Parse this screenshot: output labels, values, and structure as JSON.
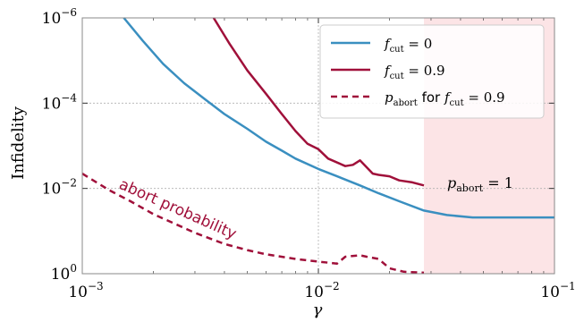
{
  "chart_data": {
    "type": "line",
    "xscale": "log",
    "yscale": "log",
    "xlim": [
      0.001,
      0.1
    ],
    "ylim": [
      1,
      1e-06
    ],
    "y_inverted": true,
    "xlabel": "γ",
    "ylabel": "Infidelity",
    "grid": true,
    "legend_position": "top-right",
    "x_ticks": [
      {
        "value": 0.001,
        "base": "10",
        "exp": "−3"
      },
      {
        "value": 0.01,
        "base": "10",
        "exp": "−2"
      },
      {
        "value": 0.1,
        "base": "10",
        "exp": "−1"
      }
    ],
    "y_ticks": [
      {
        "value": 1e-06,
        "base": "10",
        "exp": "−6"
      },
      {
        "value": 0.0001,
        "base": "10",
        "exp": "−4"
      },
      {
        "value": 0.01,
        "base": "10",
        "exp": "−2"
      },
      {
        "value": 1,
        "base": "10",
        "exp": "0"
      }
    ],
    "series": [
      {
        "name": "f_cut = 0",
        "legend_main": "f",
        "legend_sub": "cut",
        "legend_rest": " = 0",
        "color": "#3a8fc0",
        "style": "solid",
        "x": [
          0.0015,
          0.0018,
          0.0022,
          0.0027,
          0.0033,
          0.004,
          0.005,
          0.006,
          0.007,
          0.008,
          0.01,
          0.012,
          0.015,
          0.018,
          0.022,
          0.028,
          0.035,
          0.045,
          0.06,
          0.08,
          0.1
        ],
        "y": [
          1e-06,
          3.4e-06,
          1.2e-05,
          3.4e-05,
          8e-05,
          0.00018,
          0.0004,
          0.0008,
          0.0013,
          0.002,
          0.0035,
          0.0052,
          0.0085,
          0.013,
          0.02,
          0.033,
          0.042,
          0.048,
          0.048,
          0.048,
          0.048
        ]
      },
      {
        "name": "f_cut = 0.9",
        "legend_main": "f",
        "legend_sub": "cut",
        "legend_rest": " = 0.9",
        "color": "#a0103a",
        "style": "solid",
        "x": [
          0.0036,
          0.0042,
          0.005,
          0.006,
          0.007,
          0.008,
          0.009,
          0.01,
          0.011,
          0.013,
          0.014,
          0.015,
          0.017,
          0.018,
          0.02,
          0.022,
          0.025,
          0.028
        ],
        "y": [
          1e-06,
          4e-06,
          1.7e-05,
          6e-05,
          0.00018,
          0.00045,
          0.0009,
          0.0012,
          0.002,
          0.003,
          0.0028,
          0.0022,
          0.0045,
          0.0048,
          0.0052,
          0.0065,
          0.0072,
          0.0085
        ]
      },
      {
        "name": "p_abort for f_cut = 0.9",
        "legend_main": "p",
        "legend_sub": "abort",
        "legend_rest": " for ",
        "legend_main2": "f",
        "legend_sub2": "cut",
        "legend_rest2": " = 0.9",
        "color": "#a0103a",
        "style": "dashed",
        "x": [
          0.001,
          0.0013,
          0.0016,
          0.002,
          0.0025,
          0.003,
          0.004,
          0.005,
          0.006,
          0.008,
          0.01,
          0.012,
          0.013,
          0.015,
          0.016,
          0.018,
          0.02,
          0.023,
          0.028
        ],
        "y": [
          0.0045,
          0.011,
          0.02,
          0.04,
          0.07,
          0.11,
          0.2,
          0.28,
          0.35,
          0.45,
          0.52,
          0.58,
          0.4,
          0.37,
          0.4,
          0.45,
          0.75,
          0.9,
          0.95
        ]
      }
    ],
    "annotations": {
      "abort_label": "abort probability",
      "region_label_main": "p",
      "region_label_sub": "abort",
      "region_label_rest": " = 1"
    },
    "shaded_region": {
      "x_from": 0.028,
      "x_to": 0.1,
      "color": "#fce4e6"
    }
  }
}
